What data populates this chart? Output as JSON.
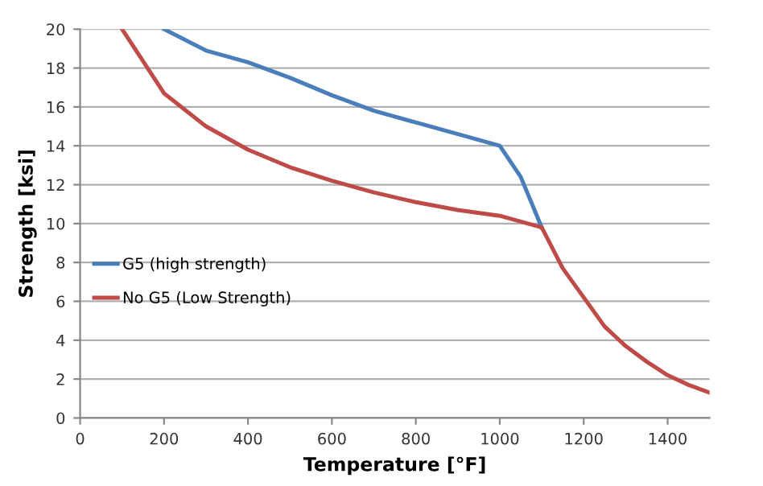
{
  "chart_data": {
    "type": "line",
    "xlabel": "Temperature [°F]",
    "ylabel": "Strength [ksi]",
    "xlim": [
      0,
      1500
    ],
    "xticks": [
      0,
      200,
      400,
      600,
      800,
      1000,
      1200,
      1400
    ],
    "ylim": [
      0,
      20
    ],
    "yticks": [
      0,
      2,
      4,
      6,
      8,
      10,
      12,
      14,
      16,
      18,
      20
    ],
    "grid": "y",
    "legend": "left",
    "marker": "none",
    "line_style": "solid",
    "series": [
      {
        "name": "G5 (high strength)",
        "color": "#4a7ebb",
        "x": [
          200,
          300,
          400,
          500,
          600,
          700,
          800,
          900,
          1000,
          1050,
          1100
        ],
        "values": [
          20,
          18.9,
          18.3,
          17.5,
          16.6,
          15.8,
          15.2,
          14.6,
          14.0,
          12.4,
          9.8
        ]
      },
      {
        "name": "No G5 (Low Strength)",
        "color": "#be4b48",
        "x": [
          100,
          200,
          300,
          400,
          500,
          600,
          700,
          800,
          900,
          1000,
          1100,
          1150,
          1200,
          1250,
          1300,
          1350,
          1400,
          1450,
          1500
        ],
        "values": [
          20,
          16.7,
          15.0,
          13.8,
          12.9,
          12.2,
          11.6,
          11.1,
          10.7,
          10.4,
          9.8,
          7.7,
          6.2,
          4.7,
          3.7,
          2.9,
          2.2,
          1.7,
          1.3
        ]
      }
    ]
  }
}
